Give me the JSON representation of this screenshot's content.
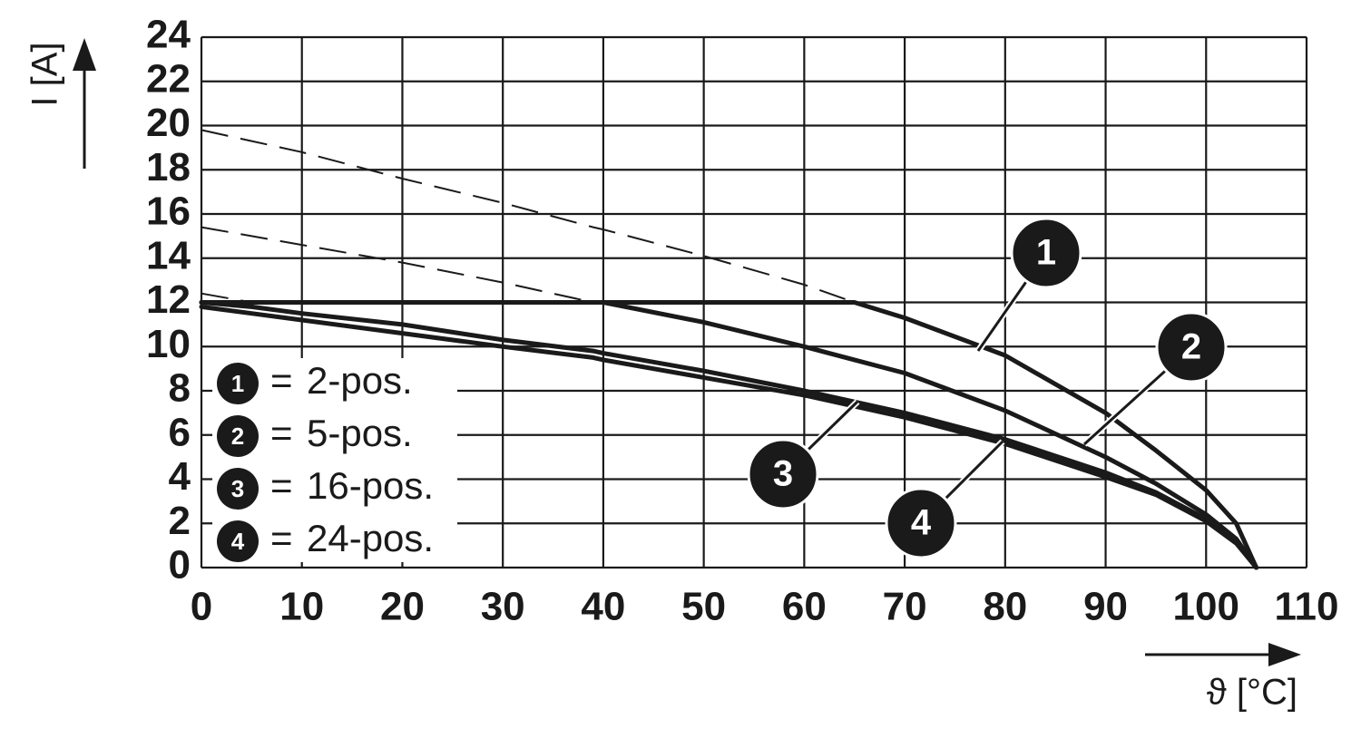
{
  "chart_data": {
    "type": "line",
    "y_label": "I [A]",
    "x_label": "ϑ [°C]",
    "legend_separator": "=",
    "xlim": [
      0,
      110
    ],
    "ylim": [
      0,
      24
    ],
    "xticks": [
      0,
      10,
      20,
      30,
      40,
      50,
      60,
      70,
      80,
      90,
      100,
      110
    ],
    "yticks": [
      0,
      2,
      4,
      6,
      8,
      10,
      12,
      14,
      16,
      18,
      20,
      22,
      24
    ],
    "grid": true,
    "x": [
      0,
      5,
      10,
      20,
      30,
      39,
      40,
      50,
      60,
      65,
      70,
      80,
      90,
      95,
      100,
      103,
      105
    ],
    "series": [
      {
        "name": "2-pos.",
        "marker": "1",
        "color": "#1a1a1a",
        "values": [
          12,
          12,
          12,
          12,
          12,
          12,
          12,
          12,
          12,
          12,
          11.3,
          9.6,
          7.0,
          5.3,
          3.5,
          2.0,
          0
        ],
        "extrapolated": [
          19.8,
          19.3,
          18.8,
          17.6,
          16.5,
          15.4,
          15.3,
          14.1,
          12.8,
          12,
          null,
          null,
          null,
          null,
          null,
          null,
          null
        ]
      },
      {
        "name": "5-pos.",
        "marker": "2",
        "color": "#1a1a1a",
        "values": [
          12,
          12,
          12,
          12,
          12,
          12,
          12,
          11.1,
          10.0,
          9.4,
          8.8,
          7.1,
          5.0,
          3.8,
          2.4,
          1.3,
          0
        ],
        "extrapolated": [
          15.4,
          15.0,
          14.6,
          13.8,
          12.9,
          12.0,
          null,
          null,
          null,
          null,
          null,
          null,
          null,
          null,
          null,
          null,
          null
        ]
      },
      {
        "name": "16-pos.",
        "marker": "3",
        "color": "#1a1a1a",
        "values": [
          12.0,
          11.8,
          11.5,
          11.0,
          10.3,
          9.8,
          9.7,
          8.9,
          8.0,
          7.5,
          7.0,
          5.8,
          4.3,
          3.4,
          2.2,
          1.2,
          0
        ],
        "extrapolated": [
          12.4,
          12.0,
          null,
          null,
          null,
          null,
          null,
          null,
          null,
          null,
          null,
          null,
          null,
          null,
          null,
          null,
          null
        ]
      },
      {
        "name": "24-pos.",
        "marker": "4",
        "color": "#1a1a1a",
        "values": [
          11.8,
          11.5,
          11.2,
          10.6,
          10.0,
          9.5,
          9.4,
          8.6,
          7.8,
          7.3,
          6.8,
          5.6,
          4.1,
          3.3,
          2.1,
          1.1,
          0
        ]
      }
    ]
  }
}
